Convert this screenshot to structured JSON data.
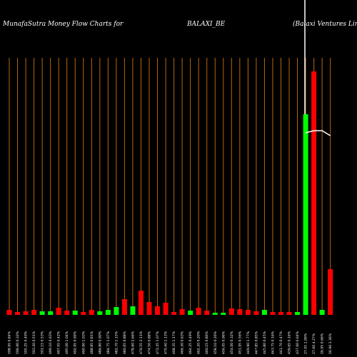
{
  "chart_data": {
    "type": "bar",
    "title": "MunafaSutra  Money Flow  Charts for",
    "symbol": "BALAXI_BE",
    "company": "(Balaxi  Ventures Limit",
    "categories": [
      "508.95 0.84%",
      "506.90 0.32%",
      "505.25 0.40%",
      "503.20 0.51%",
      "501.15 0.53%",
      "499.10 0.63%",
      "497.05 0.42%",
      "495.00 1.04%",
      "492.95 0.99%",
      "490.90 1.03%",
      "488.85 0.81%",
      "486.80 0.90%",
      "484.75 1.07%",
      "482.70 1.15%",
      "480.65 0.88%",
      "478.60 2.66%",
      "476.55 2.11%",
      "474.50 0.88%",
      "472.45 1.07%",
      "470.40 1.13%",
      "468.35 1.17%",
      "466.30 0.63%",
      "464.25 0.49%",
      "462.20 0.20%",
      "460.15 0.86%",
      "458.10 0.26%",
      "456.05 0.96%",
      "454.00 0.32%",
      "451.95 0.56%",
      "449.90 1.77%",
      "447.85 0.85%",
      "445.80 0.45%",
      "443.75 0.16%",
      "441.70 0.47%",
      "439.65 0.16%",
      "437.60 0.64%",
      "27.05 1.99%",
      "27.00 4.27%",
      "26.95 0.66%",
      "26.90 3.36%"
    ],
    "values": [
      7,
      4,
      5,
      7,
      5,
      5,
      10,
      6,
      6,
      4,
      7,
      5,
      7,
      11,
      22,
      12,
      34,
      18,
      12,
      17,
      4,
      8,
      6,
      10,
      6,
      3,
      3,
      9,
      8,
      7,
      5,
      7,
      4,
      4,
      4,
      4,
      281,
      341,
      7,
      64
    ],
    "colors": [
      "#ff0000",
      "#ff0000",
      "#ff0000",
      "#ff0000",
      "#00ff00",
      "#00ff00",
      "#ff0000",
      "#ff0000",
      "#00ff00",
      "#ff0000",
      "#ff0000",
      "#00ff00",
      "#00ff00",
      "#00ff00",
      "#ff0000",
      "#00ff00",
      "#ff0000",
      "#ff0000",
      "#ff0000",
      "#ff0000",
      "#ff0000",
      "#ff0000",
      "#00ff00",
      "#ff0000",
      "#ff0000",
      "#00ff00",
      "#00ff00",
      "#ff0000",
      "#ff0000",
      "#ff0000",
      "#ff0000",
      "#00ff00",
      "#ff0000",
      "#ff0000",
      "#ff0000",
      "#00ff00",
      "#00ff00",
      "#ff0000",
      "#00ff00",
      "#ff0000"
    ],
    "price": [
      null,
      null,
      null,
      null,
      null,
      null,
      null,
      null,
      null,
      null,
      null,
      null,
      null,
      null,
      null,
      null,
      null,
      null,
      null,
      null,
      null,
      null,
      null,
      null,
      null,
      null,
      null,
      null,
      null,
      null,
      null,
      null,
      null,
      null,
      null,
      null,
      255,
      258,
      258,
      251
    ],
    "ylim": [
      0,
      360
    ],
    "grid_color": "#b8670e",
    "price_color": "#ffffff"
  }
}
